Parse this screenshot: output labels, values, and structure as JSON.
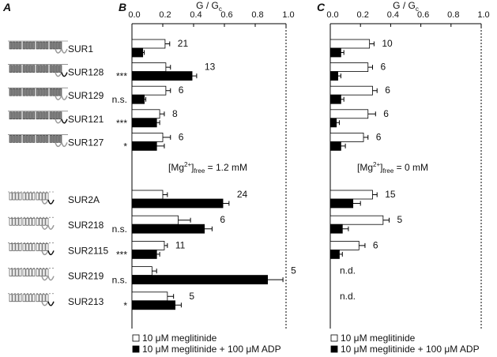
{
  "panel_a": "A",
  "chart_data": [
    {
      "type": "bar",
      "panel": "B",
      "xlabel": {
        "text": "G / G",
        "sub": "c"
      },
      "categories": [
        "SUR1",
        "SUR128",
        "SUR129",
        "SUR121",
        "SUR127",
        "SUR2A",
        "SUR218",
        "SUR2115",
        "SUR219",
        "SUR213"
      ],
      "series": [
        {
          "name": "10 μM meglitinide",
          "color": "#ffffff",
          "values": [
            0.215,
            0.22,
            0.22,
            0.18,
            0.2,
            0.2,
            0.3,
            0.21,
            0.13,
            0.23
          ],
          "errors": [
            0.03,
            0.03,
            0.03,
            0.03,
            0.05,
            0.03,
            0.08,
            0.02,
            0.03,
            0.04
          ]
        },
        {
          "name": "10 μM meglitinide + 100 μM ADP",
          "color": "#000000",
          "values": [
            0.07,
            0.39,
            0.08,
            0.16,
            0.16,
            0.59,
            0.47,
            0.16,
            0.88,
            0.28
          ],
          "errors": [
            0.01,
            0.03,
            0.01,
            0.02,
            0.05,
            0.04,
            0.05,
            0.02,
            0.1,
            0.04
          ]
        }
      ],
      "n": [
        21,
        13,
        6,
        8,
        6,
        24,
        6,
        11,
        5,
        5
      ],
      "significance": [
        null,
        "***",
        "n.s.",
        "***",
        "*",
        null,
        "n.s.",
        "***",
        "n.s.",
        "*"
      ],
      "annotation": {
        "prefix": "[Mg",
        "sup": "2+",
        "mid": "]",
        "sub": "free",
        "suffix": " = 1.2 mM"
      },
      "xlim": [
        0,
        1
      ],
      "xticks": [
        {
          "value": 0,
          "label": "0.0"
        },
        0.2,
        0.4,
        0.6,
        0.8,
        {
          "value": 1,
          "label": "1.0"
        }
      ]
    },
    {
      "type": "bar",
      "panel": "C",
      "xlabel": {
        "text": "G / G",
        "sub": "c"
      },
      "series": [
        {
          "name": "10 μM meglitinide",
          "color": "#ffffff",
          "values": [
            0.26,
            0.25,
            0.28,
            0.25,
            0.22,
            0.28,
            0.35,
            0.19,
            null,
            null
          ],
          "errors": [
            0.03,
            0.03,
            0.03,
            0.05,
            0.03,
            0.03,
            0.04,
            0.04,
            null,
            null
          ]
        },
        {
          "name": "10 μM meglitinide + 100 μM ADP",
          "color": "#000000",
          "values": [
            0.07,
            0.05,
            0.07,
            0.04,
            0.07,
            0.15,
            0.08,
            0.06,
            null,
            null
          ],
          "errors": [
            0.02,
            0.02,
            0.02,
            0.02,
            0.03,
            0.05,
            0.04,
            0.02,
            null,
            null
          ]
        }
      ],
      "n": [
        10,
        6,
        6,
        6,
        6,
        15,
        5,
        6,
        "n.d.",
        "n.d."
      ],
      "annotation": {
        "prefix": "[Mg",
        "sup": "2+",
        "mid": "]",
        "sub": "free",
        "suffix": " = 0 mM"
      },
      "xlim": [
        0,
        1
      ],
      "xticks": [
        {
          "value": 0,
          "label": "0.0"
        },
        0.2,
        0.4,
        0.6,
        0.8,
        {
          "value": 1,
          "label": "1.0"
        }
      ]
    }
  ]
}
